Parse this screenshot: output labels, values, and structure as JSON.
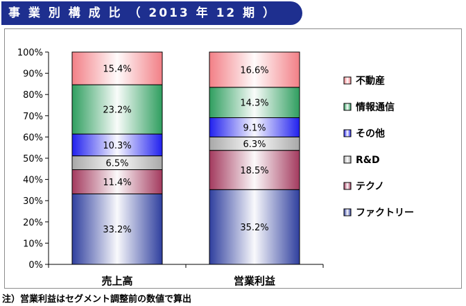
{
  "title": "事 業 別 構 成 比 （ 2013 年 12 期 ）",
  "footnote": "注）営業利益はセグメント調整前の数値で算出",
  "chart_data": {
    "type": "bar",
    "stacked": true,
    "percent": true,
    "categories": [
      "売上高",
      "営業利益"
    ],
    "series": [
      {
        "name": "ファクトリー",
        "values": [
          33.2,
          35.2
        ],
        "color": "#2f3f9e"
      },
      {
        "name": "テクノ",
        "values": [
          11.4,
          18.5
        ],
        "color": "#a33a5e"
      },
      {
        "name": "R&D",
        "values": [
          6.5,
          6.3
        ],
        "color": "#a8a8a8"
      },
      {
        "name": "その他",
        "values": [
          10.3,
          9.1
        ],
        "color": "#2020ee"
      },
      {
        "name": "情報通信",
        "values": [
          23.2,
          14.3
        ],
        "color": "#2f9e5f"
      },
      {
        "name": "不動産",
        "values": [
          15.4,
          16.6
        ],
        "color": "#f27f86"
      }
    ],
    "ylim": [
      0,
      100
    ],
    "yticks": [
      "0%",
      "10%",
      "20%",
      "30%",
      "40%",
      "50%",
      "60%",
      "70%",
      "80%",
      "90%",
      "100%"
    ],
    "legend_position": "right"
  }
}
